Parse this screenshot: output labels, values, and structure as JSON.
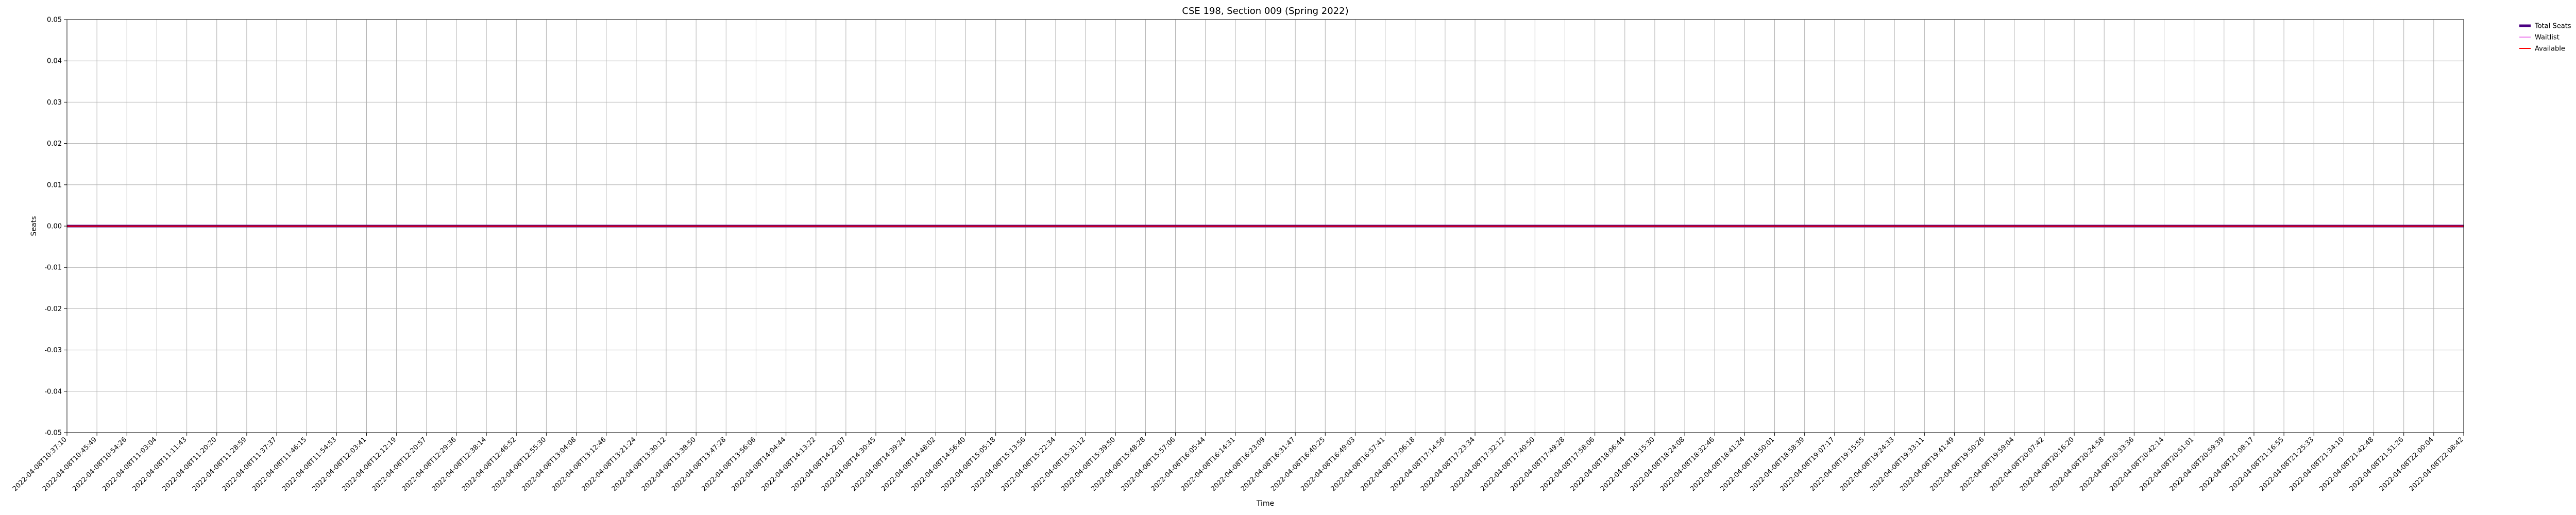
{
  "chart_data": {
    "type": "line",
    "title": "CSE 198, Section 009 (Spring 2022)",
    "xlabel": "Time",
    "ylabel": "Seats",
    "ylim": [
      -0.05,
      0.05
    ],
    "yticks": [
      -0.05,
      -0.04,
      -0.03,
      -0.02,
      -0.01,
      0.0,
      0.01,
      0.02,
      0.03,
      0.04,
      0.05
    ],
    "grid": true,
    "legend_position": "outside-top-right",
    "categories": [
      "2022-04-08T10:37:10",
      "2022-04-08T10:45:49",
      "2022-04-08T10:54:26",
      "2022-04-08T11:03:04",
      "2022-04-08T11:11:43",
      "2022-04-08T11:20:20",
      "2022-04-08T11:28:59",
      "2022-04-08T11:37:37",
      "2022-04-08T11:46:15",
      "2022-04-08T11:54:53",
      "2022-04-08T12:03:41",
      "2022-04-08T12:12:19",
      "2022-04-08T12:20:57",
      "2022-04-08T12:29:36",
      "2022-04-08T12:38:14",
      "2022-04-08T12:46:52",
      "2022-04-08T12:55:30",
      "2022-04-08T13:04:08",
      "2022-04-08T13:12:46",
      "2022-04-08T13:21:24",
      "2022-04-08T13:30:12",
      "2022-04-08T13:38:50",
      "2022-04-08T13:47:28",
      "2022-04-08T13:56:06",
      "2022-04-08T14:04:44",
      "2022-04-08T14:13:22",
      "2022-04-08T14:22:07",
      "2022-04-08T14:30:45",
      "2022-04-08T14:39:24",
      "2022-04-08T14:48:02",
      "2022-04-08T14:56:40",
      "2022-04-08T15:05:18",
      "2022-04-08T15:13:56",
      "2022-04-08T15:22:34",
      "2022-04-08T15:31:12",
      "2022-04-08T15:39:50",
      "2022-04-08T15:48:28",
      "2022-04-08T15:57:06",
      "2022-04-08T16:05:44",
      "2022-04-08T16:14:31",
      "2022-04-08T16:23:09",
      "2022-04-08T16:31:47",
      "2022-04-08T16:40:25",
      "2022-04-08T16:49:03",
      "2022-04-08T16:57:41",
      "2022-04-08T17:06:18",
      "2022-04-08T17:14:56",
      "2022-04-08T17:23:34",
      "2022-04-08T17:32:12",
      "2022-04-08T17:40:50",
      "2022-04-08T17:49:28",
      "2022-04-08T17:58:06",
      "2022-04-08T18:06:44",
      "2022-04-08T18:15:30",
      "2022-04-08T18:24:08",
      "2022-04-08T18:32:46",
      "2022-04-08T18:41:24",
      "2022-04-08T18:50:01",
      "2022-04-08T18:58:39",
      "2022-04-08T19:07:17",
      "2022-04-08T19:15:55",
      "2022-04-08T19:24:33",
      "2022-04-08T19:33:11",
      "2022-04-08T19:41:49",
      "2022-04-08T19:50:26",
      "2022-04-08T19:59:04",
      "2022-04-08T20:07:42",
      "2022-04-08T20:16:20",
      "2022-04-08T20:24:58",
      "2022-04-08T20:33:36",
      "2022-04-08T20:42:14",
      "2022-04-08T20:51:01",
      "2022-04-08T20:59:39",
      "2022-04-08T21:08:17",
      "2022-04-08T21:16:55",
      "2022-04-08T21:25:33",
      "2022-04-08T21:34:10",
      "2022-04-08T21:42:48",
      "2022-04-08T21:51:26",
      "2022-04-08T22:00:04",
      "2022-04-08T22:08:42"
    ],
    "series": [
      {
        "name": "Total Seats",
        "color": "#4b0082",
        "values": "zeros"
      },
      {
        "name": "Waitlist",
        "color": "#ee82ee",
        "values": "zeros"
      },
      {
        "name": "Available",
        "color": "#ff0000",
        "values": "zeros"
      }
    ]
  }
}
